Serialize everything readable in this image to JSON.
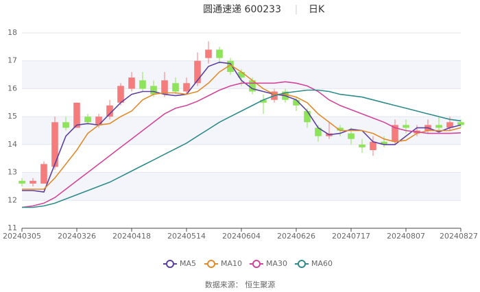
{
  "chart_data": {
    "type": "candlestick",
    "title": "圆通速递 600233",
    "subtitle": "日K",
    "source": "数据来源： 恒生聚源",
    "categories": [
      "20240305",
      null,
      null,
      null,
      null,
      "20240326",
      null,
      null,
      null,
      null,
      "20240418",
      null,
      null,
      null,
      null,
      "20240514",
      null,
      null,
      null,
      null,
      "20240604",
      null,
      null,
      null,
      null,
      "20240626",
      null,
      null,
      null,
      null,
      "20240717",
      null,
      null,
      null,
      null,
      "20240807",
      null,
      null,
      null,
      null,
      "20240827"
    ],
    "open": [
      12.7,
      12.6,
      12.6,
      13.2,
      14.8,
      14.6,
      15.0,
      14.7,
      15.0,
      15.5,
      16.0,
      16.3,
      16.1,
      15.8,
      16.2,
      15.9,
      16.2,
      17.1,
      17.4,
      17.0,
      16.6,
      16.3,
      15.6,
      15.6,
      15.9,
      15.6,
      15.2,
      14.6,
      14.3,
      14.6,
      14.4,
      14.0,
      13.8,
      14.1,
      14.1,
      14.7,
      14.4,
      14.5,
      14.7,
      14.6,
      14.8
    ],
    "close": [
      12.6,
      12.7,
      13.3,
      14.8,
      14.6,
      15.5,
      14.8,
      15.0,
      15.4,
      16.1,
      16.4,
      16.0,
      15.8,
      16.3,
      15.9,
      16.2,
      17.0,
      17.4,
      17.1,
      16.6,
      16.4,
      15.9,
      15.5,
      15.9,
      15.6,
      15.4,
      14.8,
      14.3,
      14.4,
      14.5,
      14.2,
      13.9,
      14.1,
      14.0,
      14.7,
      14.6,
      14.5,
      14.7,
      14.6,
      14.8,
      14.7
    ],
    "high": [
      12.8,
      12.8,
      13.4,
      15.0,
      15.0,
      15.5,
      15.1,
      15.1,
      15.6,
      16.2,
      16.6,
      16.6,
      16.3,
      16.6,
      16.4,
      16.4,
      17.3,
      17.7,
      17.5,
      17.1,
      16.7,
      16.4,
      15.8,
      16.0,
      16.0,
      15.7,
      15.3,
      14.7,
      14.8,
      14.7,
      14.6,
      14.2,
      14.3,
      14.3,
      14.9,
      14.9,
      14.7,
      14.9,
      15.0,
      15.0,
      14.9
    ],
    "low": [
      12.5,
      12.5,
      12.6,
      13.1,
      14.5,
      14.6,
      14.7,
      14.6,
      14.9,
      15.4,
      15.9,
      15.9,
      15.7,
      15.7,
      15.8,
      15.8,
      16.1,
      16.9,
      16.9,
      16.5,
      16.1,
      15.8,
      15.1,
      15.5,
      15.5,
      15.2,
      14.6,
      14.1,
      14.2,
      14.3,
      14.0,
      13.7,
      13.6,
      13.9,
      14.0,
      14.4,
      14.3,
      14.4,
      14.5,
      14.5,
      14.6
    ],
    "up_color": "#f47c7c",
    "down_color": "#8ee35a",
    "series": [
      {
        "name": "MA5",
        "color": "#5b3f9e",
        "values": [
          12.35,
          12.35,
          12.3,
          13.3,
          14.3,
          14.7,
          14.75,
          14.7,
          15.1,
          15.5,
          15.8,
          15.9,
          15.9,
          15.8,
          15.75,
          15.8,
          16.3,
          16.8,
          16.95,
          16.9,
          16.3,
          16.0,
          15.9,
          15.8,
          15.75,
          15.6,
          15.2,
          14.6,
          14.35,
          14.4,
          14.55,
          14.5,
          14.1,
          14.0,
          14.0,
          14.3,
          14.6,
          14.6,
          14.45,
          14.6,
          14.7
        ]
      },
      {
        "name": "MA10",
        "color": "#e08a2c",
        "values": [
          12.4,
          12.4,
          12.4,
          12.8,
          13.3,
          13.8,
          14.4,
          14.7,
          14.75,
          15.0,
          15.2,
          15.6,
          15.8,
          15.85,
          15.85,
          15.8,
          15.9,
          16.2,
          16.6,
          16.85,
          16.6,
          16.3,
          16.0,
          15.8,
          15.8,
          15.7,
          15.5,
          15.1,
          14.8,
          14.5,
          14.5,
          14.5,
          14.4,
          14.2,
          14.1,
          14.15,
          14.4,
          14.5,
          14.5,
          14.5,
          14.6
        ]
      },
      {
        "name": "MA30",
        "color": "#d1449a",
        "values": [
          11.75,
          11.8,
          11.9,
          12.1,
          12.4,
          12.7,
          13.0,
          13.3,
          13.6,
          13.9,
          14.2,
          14.5,
          14.8,
          15.1,
          15.3,
          15.4,
          15.55,
          15.75,
          15.95,
          16.1,
          16.2,
          16.2,
          16.2,
          16.2,
          16.25,
          16.2,
          16.1,
          15.9,
          15.6,
          15.4,
          15.25,
          15.1,
          14.95,
          14.8,
          14.6,
          14.5,
          14.45,
          14.4,
          14.4,
          14.4,
          14.42
        ]
      },
      {
        "name": "MA60",
        "color": "#2e8a8a",
        "values": [
          11.75,
          11.75,
          11.8,
          11.9,
          12.05,
          12.2,
          12.35,
          12.5,
          12.65,
          12.85,
          13.05,
          13.25,
          13.45,
          13.65,
          13.85,
          14.05,
          14.3,
          14.55,
          14.8,
          15.0,
          15.2,
          15.4,
          15.6,
          15.75,
          15.85,
          15.9,
          15.95,
          15.95,
          15.9,
          15.8,
          15.75,
          15.7,
          15.6,
          15.5,
          15.4,
          15.3,
          15.2,
          15.1,
          15.0,
          14.9,
          14.85
        ]
      }
    ],
    "ylim": [
      11,
      18
    ],
    "yticks": [
      11,
      12,
      13,
      14,
      15,
      16,
      17,
      18
    ],
    "grid": true
  }
}
